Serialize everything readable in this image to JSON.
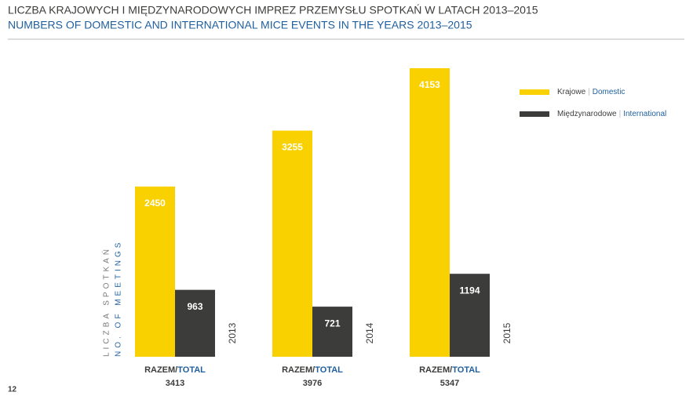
{
  "header": {
    "title": "LICZBA KRAJOWYCH I MIĘDZYNARODOWYCH IMPREZ PRZEMYSŁU SPOTKAŃ W LATACH 2013–2015",
    "subtitle": "NUMBERS OF DOMESTIC AND INTERNATIONAL MICE EVENTS IN THE YEARS 2013–2015"
  },
  "page_number": "12",
  "chart_data": {
    "type": "bar",
    "y_label": [
      "LICZBA SPOTKAŃ",
      "NO. OF MEETINGS"
    ],
    "categories": [
      "2013",
      "2014",
      "2015"
    ],
    "series": [
      {
        "name": "Krajowe",
        "name_en": "Domestic",
        "color": "#f9d100",
        "values": [
          2450,
          3255,
          4153
        ]
      },
      {
        "name": "Międzynarodowe",
        "name_en": "International",
        "color": "#3c3c3b",
        "values": [
          963,
          721,
          1194
        ]
      }
    ],
    "total_label": {
      "pl": "RAZEM/",
      "en": "TOTAL"
    },
    "totals": [
      3413,
      3976,
      5347
    ]
  }
}
